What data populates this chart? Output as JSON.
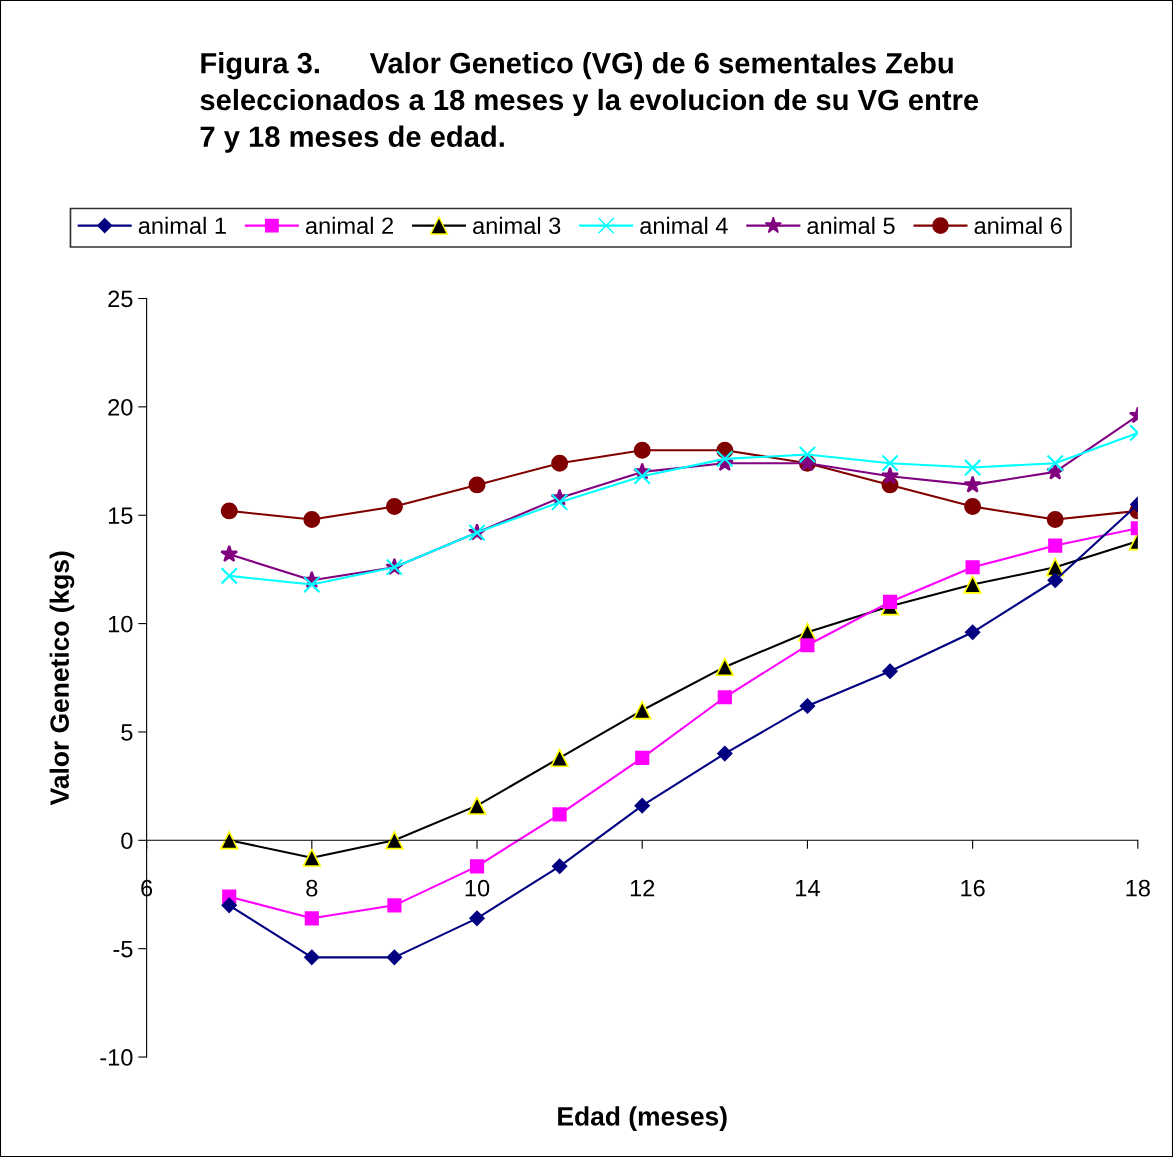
{
  "chart_data": {
    "type": "line",
    "title": "Figura 3.      Valor Genetico (VG) de 6 sementales Zebu\nseleccionados a 18 meses y la evolucion de su VG entre\n7 y 18 meses de edad.",
    "xlabel": "Edad (meses)",
    "ylabel": "Valor Genetico (kgs)",
    "x": [
      7,
      8,
      9,
      10,
      11,
      12,
      13,
      14,
      15,
      16,
      17,
      18
    ],
    "series": [
      {
        "name": "animal 1",
        "color": "#000080",
        "marker": "diamond",
        "values": [
          -3.0,
          -5.4,
          -5.4,
          -3.6,
          -1.2,
          1.6,
          4.0,
          6.2,
          7.8,
          9.6,
          12.0,
          15.5
        ]
      },
      {
        "name": "animal 2",
        "color": "#ff00ff",
        "marker": "square",
        "values": [
          -2.6,
          -3.6,
          -3.0,
          -1.2,
          1.2,
          3.8,
          6.6,
          9.0,
          11.0,
          12.6,
          13.6,
          14.4
        ]
      },
      {
        "name": "animal 3",
        "color": "#000000",
        "marker": "triangle",
        "values": [
          0.0,
          -0.8,
          0.0,
          1.6,
          3.8,
          6.0,
          8.0,
          9.6,
          10.8,
          11.8,
          12.6,
          13.8
        ]
      },
      {
        "name": "animal 4",
        "color": "#00ffff",
        "marker": "cross",
        "values": [
          12.2,
          11.8,
          12.6,
          14.2,
          15.6,
          16.8,
          17.6,
          17.8,
          17.4,
          17.2,
          17.4,
          18.8
        ]
      },
      {
        "name": "animal 5",
        "color": "#800080",
        "marker": "star",
        "values": [
          13.2,
          12.0,
          12.6,
          14.2,
          15.8,
          17.0,
          17.4,
          17.4,
          16.8,
          16.4,
          17.0,
          19.6
        ]
      },
      {
        "name": "animal 6",
        "color": "#800000",
        "marker": "circle",
        "values": [
          15.2,
          14.8,
          15.4,
          16.4,
          17.4,
          18.0,
          18.0,
          17.4,
          16.4,
          15.4,
          14.8,
          15.2
        ]
      }
    ],
    "xlim": [
      6,
      18
    ],
    "xticks": [
      6,
      8,
      10,
      12,
      14,
      16,
      18
    ],
    "ylim": [
      -10,
      25
    ],
    "yticks": [
      -10,
      -5,
      0,
      5,
      10,
      15,
      20,
      25
    ],
    "grid": false,
    "legend": "top",
    "line_style": "solid"
  }
}
